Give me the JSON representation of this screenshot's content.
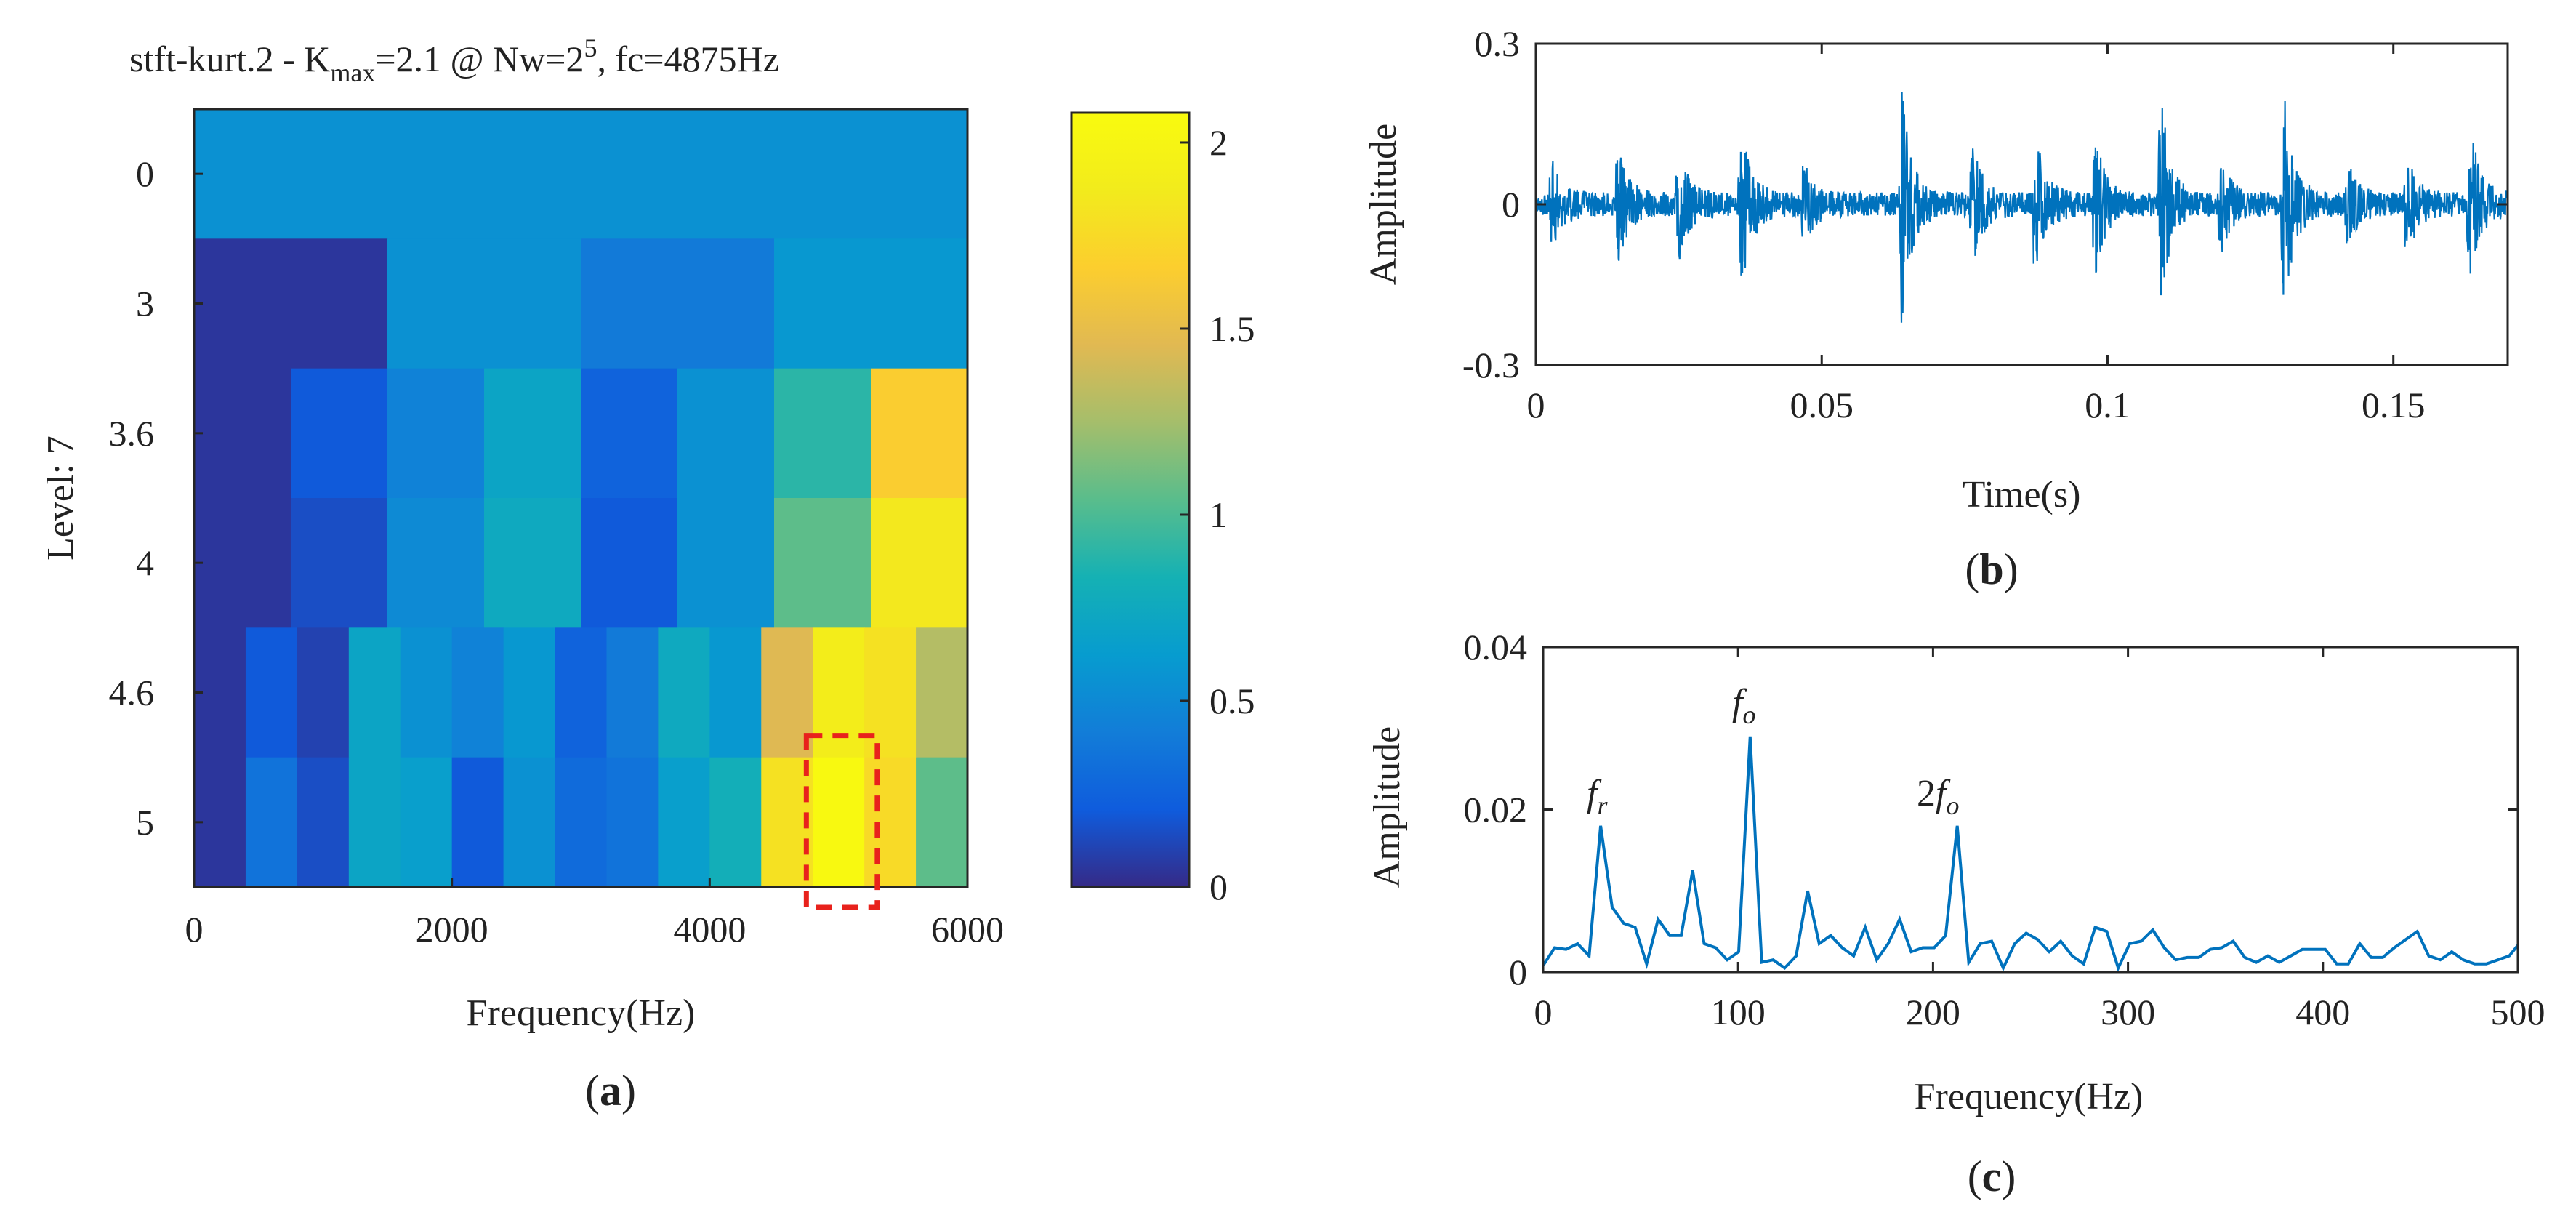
{
  "colors": {
    "line": "#0072BD",
    "axis": "#262626",
    "highlight": "#e8221c",
    "background": "#ffffff"
  },
  "panels": {
    "a": {
      "label_open": "(",
      "label_letter": "a",
      "label_close": ")",
      "title": {
        "prefix": "stft-kurt.2 - K",
        "subscript": "max",
        "mid": "=2.1 @ Nw=2",
        "superscript": "5",
        "suffix": ", fc=4875Hz"
      }
    },
    "b": {
      "label_open": "(",
      "label_letter": "b",
      "label_close": ")"
    },
    "c": {
      "label_open": "(",
      "label_letter": "c",
      "label_close": ")",
      "annotations": {
        "fr_base": "f",
        "fr_sub": "r",
        "fo_base": "f",
        "fo_sub": "o",
        "two_fo_prefix": "2",
        "two_fo_base": "f",
        "two_fo_sub": "o"
      }
    }
  },
  "chart_data": [
    {
      "type": "heatmap",
      "title": "stft-kurt.2 - Kmax=2.1 @ Nw=2^5, fc=4875Hz",
      "xlabel": "Frequency(Hz)",
      "ylabel": "Level: 7",
      "xlim": [
        0,
        6000
      ],
      "xticks": [
        0,
        2000,
        4000,
        6000
      ],
      "xtick_labels": [
        "0",
        "2000",
        "4000",
        "6000"
      ],
      "levels": [
        "0",
        "3",
        "3.6",
        "4",
        "4.6",
        "5"
      ],
      "rows": [
        [
          0.55
        ],
        [
          0.05,
          0.55,
          0.4,
          0.6
        ],
        [
          0.05,
          0.2,
          0.45,
          0.7,
          0.25,
          0.55,
          0.9,
          1.65
        ],
        [
          0.05,
          0.15,
          0.5,
          0.75,
          0.2,
          0.55,
          1.05,
          1.85
        ],
        [
          0.05,
          0.2,
          0.1,
          0.7,
          0.55,
          0.45,
          0.6,
          0.25,
          0.4,
          0.75,
          0.6,
          1.45,
          1.9,
          1.8,
          1.3
        ],
        [
          0.05,
          0.35,
          0.15,
          0.7,
          0.65,
          0.2,
          0.55,
          0.3,
          0.35,
          0.65,
          0.8,
          1.8,
          2.05,
          1.75,
          1.05
        ]
      ],
      "colorbar": {
        "range": [
          0,
          2.08
        ],
        "ticks": [
          0,
          0.5,
          1,
          1.5,
          2
        ],
        "tick_labels": [
          "0",
          "0.5",
          "1",
          "1.5",
          "2"
        ]
      },
      "highlight_box": {
        "x_range": [
          4750,
          5300
        ],
        "level": "5"
      }
    },
    {
      "type": "line",
      "xlabel": "Time(s)",
      "ylabel": "Amplitude",
      "xlim": [
        0,
        0.17
      ],
      "ylim": [
        -0.3,
        0.3
      ],
      "xticks": [
        0,
        0.05,
        0.1,
        0.15
      ],
      "xtick_labels": [
        "0",
        "0.05",
        "0.1",
        "0.15"
      ],
      "yticks": [
        -0.3,
        0,
        0.3
      ],
      "ytick_labels": [
        "-0.3",
        "0",
        "0.3"
      ],
      "impulse_times": [
        0.003,
        0.0145,
        0.025,
        0.036,
        0.047,
        0.064,
        0.0765,
        0.0875,
        0.098,
        0.1095,
        0.12,
        0.131,
        0.142,
        0.1525,
        0.1635
      ],
      "impulse_amplitudes": [
        0.07,
        0.09,
        0.1,
        0.16,
        0.06,
        0.21,
        0.1,
        0.12,
        0.11,
        0.17,
        0.07,
        0.18,
        0.07,
        0.08,
        0.13
      ]
    },
    {
      "type": "line",
      "xlabel": "Frequency(Hz)",
      "ylabel": "Amplitude",
      "xlim": [
        0,
        500
      ],
      "ylim": [
        0,
        0.04
      ],
      "xticks": [
        0,
        100,
        200,
        300,
        400,
        500
      ],
      "xtick_labels": [
        "0",
        "100",
        "200",
        "300",
        "400",
        "500"
      ],
      "yticks": [
        0,
        0.02,
        0.04
      ],
      "ytick_labels": [
        "0",
        "0.02",
        "0.04"
      ],
      "x": [
        0,
        5.9,
        11.8,
        17.7,
        23.6,
        29.5,
        35.4,
        41.3,
        47.2,
        53.1,
        59,
        64.9,
        70.8,
        76.7,
        82.6,
        88.5,
        94.4,
        100.3,
        106.2,
        112.1,
        118,
        123.9,
        129.8,
        135.7,
        141.6,
        147.5,
        153.4,
        159.3,
        165.2,
        171.1,
        177,
        182.9,
        188.8,
        194.7,
        200.6,
        206.5,
        212.4,
        218.3,
        224.2,
        230.1,
        236,
        241.9,
        247.8,
        253.7,
        259.6,
        265.5,
        271.4,
        277.3,
        283.2,
        289.1,
        295,
        300.9,
        306.8,
        312.7,
        318.6,
        324.5,
        330.4,
        336.3,
        342.2,
        348.1,
        354,
        359.9,
        365.8,
        371.7,
        377.6,
        383.5,
        389.4,
        395.3,
        401.2,
        407.1,
        413,
        418.9,
        424.8,
        430.7,
        436.6,
        442.5,
        448.4,
        454.3,
        460.2,
        466.1,
        472,
        477.9,
        483.8,
        489.7,
        495.6,
        500
      ],
      "y": [
        0.0008,
        0.003,
        0.0028,
        0.0035,
        0.002,
        0.018,
        0.008,
        0.006,
        0.0055,
        0.001,
        0.0065,
        0.0045,
        0.0045,
        0.0125,
        0.0035,
        0.003,
        0.0015,
        0.0025,
        0.029,
        0.0012,
        0.0015,
        0.0005,
        0.002,
        0.01,
        0.0035,
        0.0045,
        0.003,
        0.002,
        0.0055,
        0.0015,
        0.0035,
        0.0065,
        0.0025,
        0.003,
        0.003,
        0.0045,
        0.018,
        0.0012,
        0.0035,
        0.0038,
        0.0005,
        0.0035,
        0.0048,
        0.004,
        0.0025,
        0.0038,
        0.002,
        0.001,
        0.0055,
        0.005,
        0.0005,
        0.0035,
        0.0038,
        0.0052,
        0.003,
        0.0015,
        0.0018,
        0.0018,
        0.0028,
        0.003,
        0.0038,
        0.0018,
        0.0012,
        0.002,
        0.0012,
        0.002,
        0.0028,
        0.0028,
        0.0028,
        0.001,
        0.001,
        0.0035,
        0.0018,
        0.0018,
        0.003,
        0.004,
        0.005,
        0.002,
        0.0015,
        0.0025,
        0.0015,
        0.001,
        0.001,
        0.0015,
        0.002,
        0.0033
      ],
      "annotations": [
        {
          "text": "fr",
          "x": 29.5,
          "y": 0.018
        },
        {
          "text": "fo",
          "x": 106.2,
          "y": 0.029
        },
        {
          "text": "2fo",
          "x": 212.4,
          "y": 0.018
        }
      ]
    }
  ]
}
